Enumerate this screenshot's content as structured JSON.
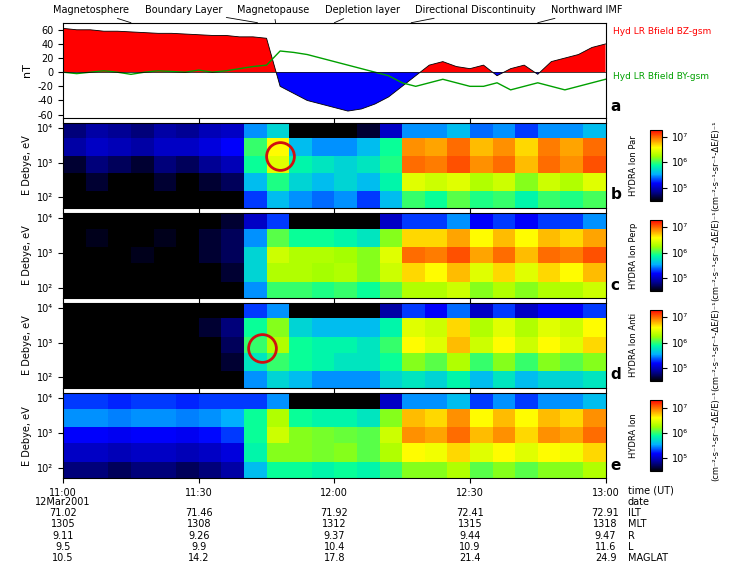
{
  "chart_data": {
    "type": "spectrogram",
    "xlim": [
      0,
      120
    ],
    "xticks": [
      {
        "value": 0,
        "label": "11:00"
      },
      {
        "value": 30,
        "label": "11:30"
      },
      {
        "value": 60,
        "label": "12:00"
      },
      {
        "value": 90,
        "label": "12:30"
      },
      {
        "value": 120,
        "label": "13:00"
      }
    ],
    "regions": [
      {
        "label": "Magnetosphere",
        "x": 15
      },
      {
        "label": "Boundary Layer",
        "x": 43
      },
      {
        "label": "Magnetopause",
        "x": 47
      },
      {
        "label": "Depletion layer",
        "x": 60
      },
      {
        "label": "Directional Discontinuity",
        "x": 77
      },
      {
        "label": "Northward IMF",
        "x": 105
      }
    ],
    "field": {
      "type": "area",
      "letter": "a",
      "ylabel": "nT",
      "ylim": [
        -65,
        70
      ],
      "yticks": [
        -60,
        -40,
        -20,
        0,
        20,
        40,
        60
      ],
      "x": [
        0,
        3,
        6,
        9,
        12,
        15,
        18,
        21,
        24,
        27,
        30,
        33,
        36,
        39,
        42,
        45,
        48,
        51,
        54,
        57,
        60,
        63,
        66,
        69,
        72,
        75,
        78,
        81,
        84,
        87,
        90,
        93,
        96,
        99,
        102,
        105,
        108,
        111,
        114,
        117,
        120
      ],
      "series": [
        {
          "name": "Hyd LR Bfield BZ-gsm",
          "type": "area",
          "colors": [
            "#ff0000",
            "#0000ff"
          ],
          "values": [
            62,
            60,
            60,
            58,
            58,
            57,
            56,
            55,
            55,
            54,
            53,
            52,
            52,
            50,
            50,
            48,
            -20,
            -30,
            -40,
            -45,
            -50,
            -55,
            -52,
            -45,
            -35,
            -20,
            -5,
            10,
            15,
            8,
            5,
            10,
            -5,
            5,
            10,
            -3,
            15,
            20,
            25,
            35,
            40
          ]
        },
        {
          "name": "Hyd LR Bfield BY-gsm",
          "type": "line",
          "color": "#00a000",
          "values": [
            0,
            -2,
            0,
            2,
            0,
            -3,
            0,
            2,
            1,
            0,
            3,
            0,
            2,
            5,
            8,
            10,
            30,
            28,
            25,
            20,
            15,
            10,
            5,
            0,
            -5,
            -15,
            -20,
            -15,
            -10,
            -15,
            -20,
            -20,
            -15,
            -25,
            -20,
            -15,
            -20,
            -25,
            -20,
            -15,
            -10
          ]
        }
      ]
    },
    "spectrogram": {
      "ylabel": "E Debye, eV",
      "log": "y",
      "ylim": [
        50,
        14000
      ],
      "yticks": [
        {
          "value": 100,
          "label": "10²"
        },
        {
          "value": 1000,
          "label": "10³"
        },
        {
          "value": 10000,
          "label": "10⁴"
        }
      ],
      "time_edges": [
        0,
        5,
        10,
        15,
        20,
        25,
        30,
        35,
        40,
        45,
        50,
        55,
        60,
        65,
        70,
        75,
        80,
        85,
        90,
        95,
        100,
        105,
        110,
        115,
        120
      ],
      "energy_edges": [
        50,
        150,
        500,
        1500,
        5000,
        14000
      ],
      "colorbar": {
        "label": "(cm⁻²-s⁻¹-sr⁻¹-ΔE/E)⁻¹",
        "range": [
          30000,
          20000000
        ],
        "ticks": [
          {
            "value": 100000,
            "label": "10⁵"
          },
          {
            "value": 1000000,
            "label": "10⁶"
          },
          {
            "value": 10000000,
            "label": "10⁷"
          }
        ]
      },
      "panels": [
        {
          "letter": "b",
          "title": "HYDRA Ion Par",
          "circle": {
            "x": 48,
            "y": 1500
          },
          "cells": [
            [
              20000,
              30000,
              20000,
              20000,
              30000,
              20000,
              20000,
              30000,
              200000,
              400000,
              300000,
              250000,
              300000,
              200000,
              400000,
              1000000,
              800000,
              1200000,
              900000,
              1000000,
              700000,
              1000000,
              900000,
              1100000
            ],
            [
              30000,
              40000,
              30000,
              30000,
              40000,
              30000,
              40000,
              50000,
              400000,
              900000,
              500000,
              400000,
              500000,
              400000,
              700000,
              3000000,
              2500000,
              3000000,
              2000000,
              2500000,
              1500000,
              2500000,
              2000000,
              3000000
            ],
            [
              40000,
              60000,
              50000,
              40000,
              60000,
              50000,
              70000,
              90000,
              800000,
              3000000,
              700000,
              600000,
              500000,
              600000,
              900000,
              10000000,
              9000000,
              12000000,
              8000000,
              10000000,
              6000000,
              10000000,
              8000000,
              12000000
            ],
            [
              80000,
              100000,
              90000,
              80000,
              100000,
              100000,
              120000,
              150000,
              1000000,
              4000000,
              400000,
              300000,
              300000,
              400000,
              800000,
              8000000,
              7000000,
              10000000,
              6000000,
              8000000,
              5000000,
              9000000,
              7000000,
              10000000
            ],
            [
              60000,
              80000,
              70000,
              60000,
              80000,
              70000,
              90000,
              100000,
              300000,
              500000,
              30000,
              30000,
              30000,
              40000,
              100000,
              300000,
              300000,
              400000,
              250000,
              300000,
              200000,
              300000,
              300000,
              400000
            ]
          ]
        },
        {
          "letter": "c",
          "title": "HYDRA Ion Perp",
          "cells": [
            [
              20000,
              20000,
              25000,
              20000,
              20000,
              25000,
              20000,
              30000,
              300000,
              1000000,
              1000000,
              900000,
              1000000,
              800000,
              1200000,
              2000000,
              2000000,
              2500000,
              1500000,
              2000000,
              1500000,
              2000000,
              2000000,
              2500000
            ],
            [
              20000,
              25000,
              20000,
              20000,
              25000,
              20000,
              30000,
              40000,
              500000,
              2000000,
              2000000,
              1800000,
              2000000,
              1500000,
              2500000,
              5000000,
              4000000,
              6000000,
              3000000,
              5000000,
              3000000,
              5000000,
              4000000,
              6000000
            ],
            [
              30000,
              30000,
              30000,
              35000,
              30000,
              30000,
              40000,
              50000,
              500000,
              2500000,
              2000000,
              2000000,
              1800000,
              1500000,
              3000000,
              10000000,
              9000000,
              12000000,
              7000000,
              10000000,
              6000000,
              10000000,
              9000000,
              12000000
            ],
            [
              30000,
              35000,
              30000,
              30000,
              35000,
              30000,
              40000,
              50000,
              300000,
              1200000,
              800000,
              800000,
              700000,
              600000,
              1500000,
              5000000,
              5000000,
              7000000,
              4000000,
              6000000,
              4000000,
              6000000,
              5000000,
              7000000
            ],
            [
              30000,
              30000,
              30000,
              30000,
              30000,
              30000,
              30000,
              40000,
              100000,
              200000,
              30000,
              30000,
              30000,
              30000,
              100000,
              200000,
              200000,
              300000,
              150000,
              200000,
              150000,
              200000,
              200000,
              300000
            ]
          ]
        },
        {
          "letter": "d",
          "title": "HYDRA Ion Anti",
          "circle": {
            "x": 44,
            "y": 700
          },
          "cells": [
            [
              20000,
              20000,
              20000,
              20000,
              20000,
              20000,
              20000,
              30000,
              300000,
              500000,
              400000,
              300000,
              300000,
              300000,
              500000,
              600000,
              500000,
              700000,
              400000,
              600000,
              400000,
              500000,
              500000,
              600000
            ],
            [
              20000,
              20000,
              20000,
              20000,
              20000,
              20000,
              30000,
              40000,
              600000,
              1000000,
              800000,
              700000,
              600000,
              600000,
              800000,
              1500000,
              1200000,
              2000000,
              1000000,
              1500000,
              1000000,
              1500000,
              1200000,
              1500000
            ],
            [
              25000,
              25000,
              25000,
              25000,
              25000,
              30000,
              30000,
              50000,
              1000000,
              2000000,
              800000,
              700000,
              700000,
              600000,
              1000000,
              4000000,
              3000000,
              6000000,
              2500000,
              4000000,
              2500000,
              4000000,
              3000000,
              5000000
            ],
            [
              30000,
              30000,
              30000,
              30000,
              30000,
              30000,
              40000,
              60000,
              800000,
              1500000,
              500000,
              400000,
              400000,
              400000,
              700000,
              3000000,
              2500000,
              5000000,
              2000000,
              3000000,
              2000000,
              3000000,
              2500000,
              4000000
            ],
            [
              20000,
              20000,
              20000,
              20000,
              20000,
              20000,
              20000,
              30000,
              200000,
              300000,
              30000,
              30000,
              30000,
              30000,
              80000,
              200000,
              150000,
              250000,
              100000,
              200000,
              100000,
              150000,
              150000,
              200000
            ]
          ]
        },
        {
          "letter": "e",
          "title": "HYDRA Ion",
          "cells": [
            [
              60000,
              60000,
              50000,
              60000,
              60000,
              50000,
              60000,
              80000,
              400000,
              800000,
              800000,
              700000,
              800000,
              700000,
              1000000,
              1500000,
              1500000,
              2000000,
              1200000,
              1500000,
              1200000,
              1500000,
              1500000,
              2000000
            ],
            [
              100000,
              100000,
              90000,
              100000,
              100000,
              90000,
              100000,
              120000,
              700000,
              1500000,
              1500000,
              1400000,
              1500000,
              1200000,
              2000000,
              4000000,
              3500000,
              5000000,
              3000000,
              4000000,
              3000000,
              4000000,
              3500000,
              5000000
            ],
            [
              150000,
              150000,
              140000,
              150000,
              150000,
              140000,
              160000,
              200000,
              800000,
              2500000,
              1500000,
              1400000,
              1300000,
              1200000,
              2500000,
              8000000,
              7000000,
              10000000,
              6000000,
              8000000,
              5000000,
              8000000,
              7000000,
              10000000
            ],
            [
              300000,
              300000,
              280000,
              300000,
              300000,
              280000,
              300000,
              350000,
              800000,
              2000000,
              800000,
              700000,
              700000,
              600000,
              1500000,
              6000000,
              5000000,
              8000000,
              4000000,
              6000000,
              4000000,
              6000000,
              5000000,
              8000000
            ],
            [
              200000,
              200000,
              180000,
              200000,
              200000,
              180000,
              200000,
              200000,
              200000,
              300000,
              30000,
              30000,
              30000,
              30000,
              100000,
              300000,
              300000,
              400000,
              200000,
              300000,
              200000,
              300000,
              300000,
              400000
            ]
          ]
        }
      ]
    },
    "ephemeris": {
      "time_label": "time (UT)",
      "date": {
        "label": "date",
        "value": "12Mar2001"
      },
      "rows": [
        {
          "label": "ILT",
          "values": [
            71.02,
            71.46,
            71.92,
            72.41,
            72.91
          ]
        },
        {
          "label": "MLT",
          "values": [
            1305,
            1308,
            1312,
            1315,
            1318
          ]
        },
        {
          "label": "R",
          "values": [
            9.11,
            9.26,
            9.37,
            9.44,
            9.47
          ]
        },
        {
          "label": "L",
          "values": [
            9.5,
            9.9,
            10.4,
            10.9,
            11.6
          ]
        },
        {
          "label": "MAGLAT",
          "values": [
            10.5,
            14.2,
            17.8,
            21.4,
            24.9
          ]
        }
      ]
    }
  }
}
